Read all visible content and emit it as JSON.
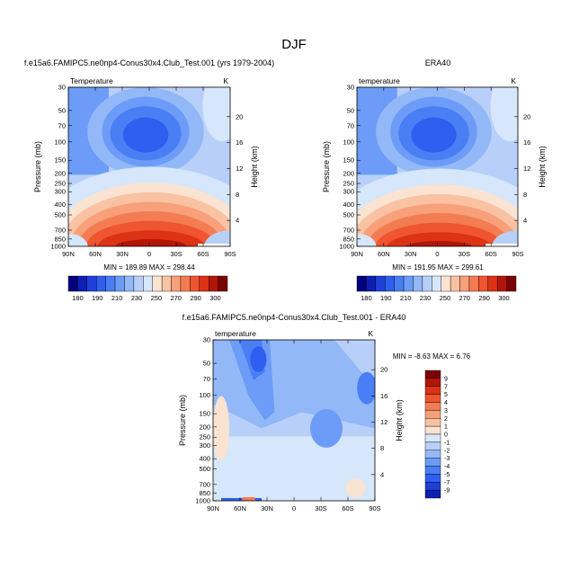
{
  "figure": {
    "title": "DJF"
  },
  "chart_data": [
    {
      "type": "heatmap",
      "title": "f.e15a6.FAMIPC5.ne0np4-Conus30x4.Club_Test.001 (yrs 1979-2004)",
      "left_label": "Temperature",
      "right_label": "K",
      "ylabel": "Pressure (mb)",
      "y2label": "Height (km)",
      "x_ticks": [
        "90N",
        "60N",
        "30N",
        "0",
        "30S",
        "60S",
        "90S"
      ],
      "y_ticks": [
        "30",
        "50",
        "70",
        "100",
        "150",
        "200",
        "250",
        "300",
        "400",
        "500",
        "700",
        "850",
        "1000"
      ],
      "y2_ticks": [
        "20",
        "16",
        "12",
        "8",
        "4"
      ],
      "stats": "MIN = 189.89  MAX = 298.44",
      "stats_values": {
        "min": 189.89,
        "max": 298.44
      },
      "colorbar": {
        "labels": [
          "180",
          "190",
          "210",
          "230",
          "250",
          "270",
          "290",
          "300"
        ]
      }
    },
    {
      "type": "heatmap",
      "title": "ERA40",
      "left_label": "temperature",
      "right_label": "K",
      "ylabel": "Pressure (mb)",
      "y2label": "Height (km)",
      "x_ticks": [
        "90N",
        "60N",
        "30N",
        "0",
        "30S",
        "60S",
        "90S"
      ],
      "y_ticks": [
        "30",
        "50",
        "70",
        "100",
        "150",
        "200",
        "250",
        "300",
        "400",
        "500",
        "700",
        "850",
        "1000"
      ],
      "y2_ticks": [
        "20",
        "16",
        "12",
        "8",
        "4"
      ],
      "stats": "MIN = 191.95  MAX = 299.61",
      "stats_values": {
        "min": 191.95,
        "max": 299.61
      },
      "colorbar": {
        "labels": [
          "180",
          "190",
          "210",
          "230",
          "250",
          "270",
          "290",
          "300"
        ]
      }
    },
    {
      "type": "heatmap",
      "title": "f.e15a6.FAMIPC5.ne0np4-Conus30x4.Club_Test.001 - ERA40",
      "left_label": "temperature",
      "right_label": "K",
      "ylabel": "Pressure (mb)",
      "y2label": "Height (km)",
      "x_ticks": [
        "90N",
        "60N",
        "30N",
        "0",
        "30S",
        "60S",
        "90S"
      ],
      "y_ticks": [
        "30",
        "50",
        "70",
        "100",
        "150",
        "200",
        "250",
        "300",
        "400",
        "500",
        "700",
        "850",
        "1000"
      ],
      "y2_ticks": [
        "20",
        "16",
        "12",
        "8",
        "4"
      ],
      "stats": "MIN = -8.63  MAX =   6.76",
      "stats_values": {
        "min": -8.63,
        "max": 6.76
      },
      "colorbar": {
        "labels": [
          "9",
          "7",
          "5",
          "4",
          "3",
          "2",
          "1",
          "0",
          "-1",
          "-2",
          "-3",
          "-4",
          "-5",
          "-7",
          "-9"
        ]
      }
    }
  ],
  "colors": {
    "abs_scale": [
      "#00007f",
      "#0c1fb0",
      "#1f3fd8",
      "#2f5ef0",
      "#4a7ef5",
      "#6c9cf7",
      "#93b8f8",
      "#b8d0f9",
      "#d6e6fb",
      "#fbe3d2",
      "#f9c2a3",
      "#f7a07a",
      "#f47c53",
      "#ee5530",
      "#dc3215",
      "#b31507",
      "#7a0303"
    ],
    "diff_scale": [
      "#7a0303",
      "#b31507",
      "#dc3215",
      "#ee5530",
      "#f47c53",
      "#f7a07a",
      "#f9c2a3",
      "#fbe3d2",
      "#d6e6fb",
      "#b8d0f9",
      "#93b8f8",
      "#6c9cf7",
      "#4a7ef5",
      "#2f5ef0",
      "#1f3fd8",
      "#0c1fb0"
    ]
  }
}
